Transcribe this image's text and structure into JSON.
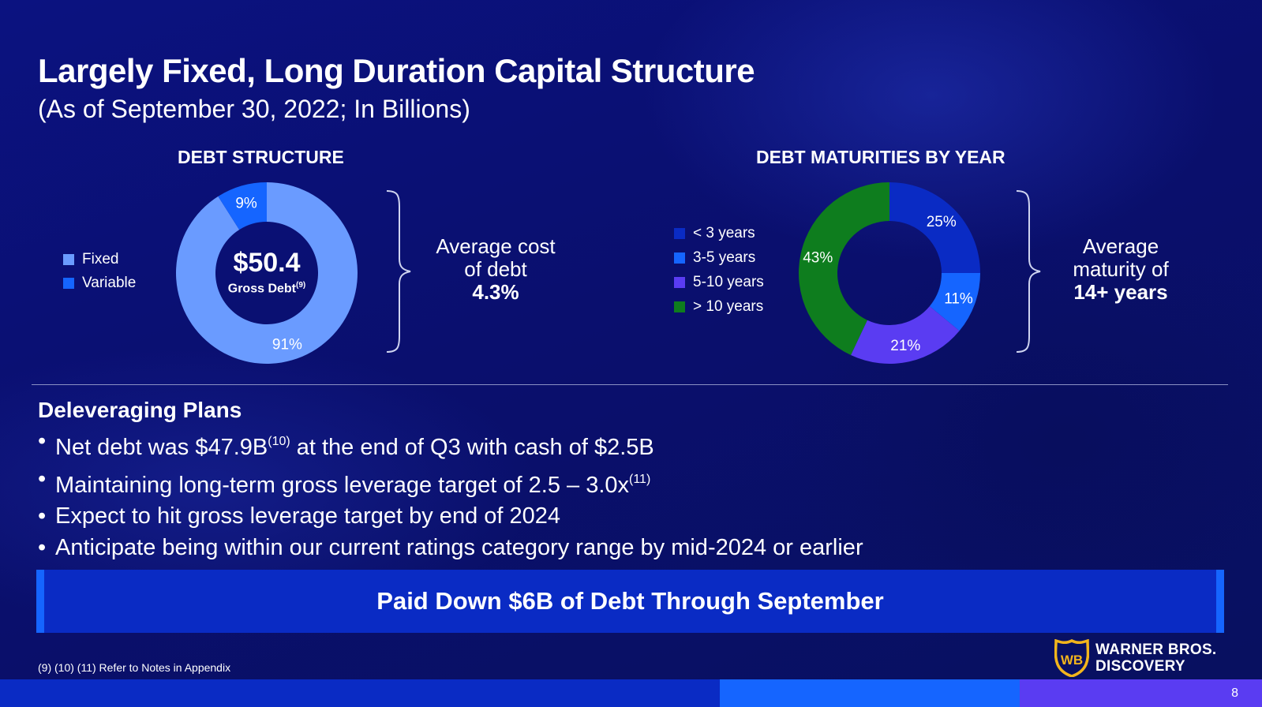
{
  "slide": {
    "title": "Largely Fixed, Long Duration Capital Structure",
    "subtitle": "(As of September 30, 2022; In Billions)",
    "page_number": "8",
    "footnote": "(9) (10) (11) Refer to Notes in Appendix"
  },
  "debt_structure": {
    "heading": "DEBT STRUCTURE",
    "center_value": "$50.4",
    "center_label": "Gross Debt",
    "center_label_sup": "(9)",
    "legend": [
      {
        "label": "Fixed",
        "color": "#6a9bff"
      },
      {
        "label": "Variable",
        "color": "#1565ff"
      }
    ],
    "callout_line1": "Average cost",
    "callout_line2": "of debt",
    "callout_value": "4.3%"
  },
  "debt_maturities": {
    "heading": "DEBT MATURITIES BY YEAR",
    "legend": [
      {
        "label": "< 3 years",
        "color": "#0a2bc4"
      },
      {
        "label": "3-5 years",
        "color": "#1565ff"
      },
      {
        "label": "5-10 years",
        "color": "#5a3cf2"
      },
      {
        "label": "> 10 years",
        "color": "#0e7d1e"
      }
    ],
    "callout_line1": "Average",
    "callout_line2": "maturity of",
    "callout_value": "14+ years"
  },
  "chart_data": [
    {
      "type": "pie",
      "title": "DEBT STRUCTURE",
      "categories": [
        "Fixed",
        "Variable"
      ],
      "values": [
        91,
        9
      ],
      "data_labels": [
        "91%",
        "9%"
      ],
      "colors": [
        "#6a9bff",
        "#1565ff"
      ],
      "center_text": "$50.4 Gross Debt(9)",
      "legend_position": "left"
    },
    {
      "type": "pie",
      "title": "DEBT MATURITIES BY YEAR",
      "categories": [
        "< 3 years",
        "3-5 years",
        "5-10 years",
        "> 10 years"
      ],
      "values": [
        25,
        11,
        21,
        43
      ],
      "data_labels": [
        "25%",
        "11%",
        "21%",
        "43%"
      ],
      "colors": [
        "#0a2bc4",
        "#1565ff",
        "#5a3cf2",
        "#0e7d1e"
      ],
      "legend_position": "left"
    }
  ],
  "plans": {
    "heading": "Deleveraging Plans",
    "bullets": [
      {
        "text_before": "Net debt was $47.9B",
        "sup": "(10)",
        "text_after": " at the end of Q3 with cash of $2.5B"
      },
      {
        "text_before": "Maintaining long-term gross leverage target of 2.5 – 3.0x",
        "sup": "(11)",
        "text_after": ""
      },
      {
        "text_before": "Expect to hit gross leverage target by end of 2024",
        "sup": "",
        "text_after": ""
      },
      {
        "text_before": "Anticipate being within our current ratings category range by mid-2024 or earlier",
        "sup": "",
        "text_after": ""
      }
    ],
    "bullet_glyph": "•"
  },
  "banner": {
    "text": "Paid Down $6B of Debt Through September"
  },
  "logo": {
    "icon": "wb-shield-icon",
    "line1": "WARNER BROS.",
    "line2": "DISCOVERY",
    "shield_text": "WB",
    "shield_color": "#f2b51c"
  },
  "bottom_bar_colors": [
    "#0a2bc4",
    "#1565ff",
    "#5a3cf2"
  ]
}
